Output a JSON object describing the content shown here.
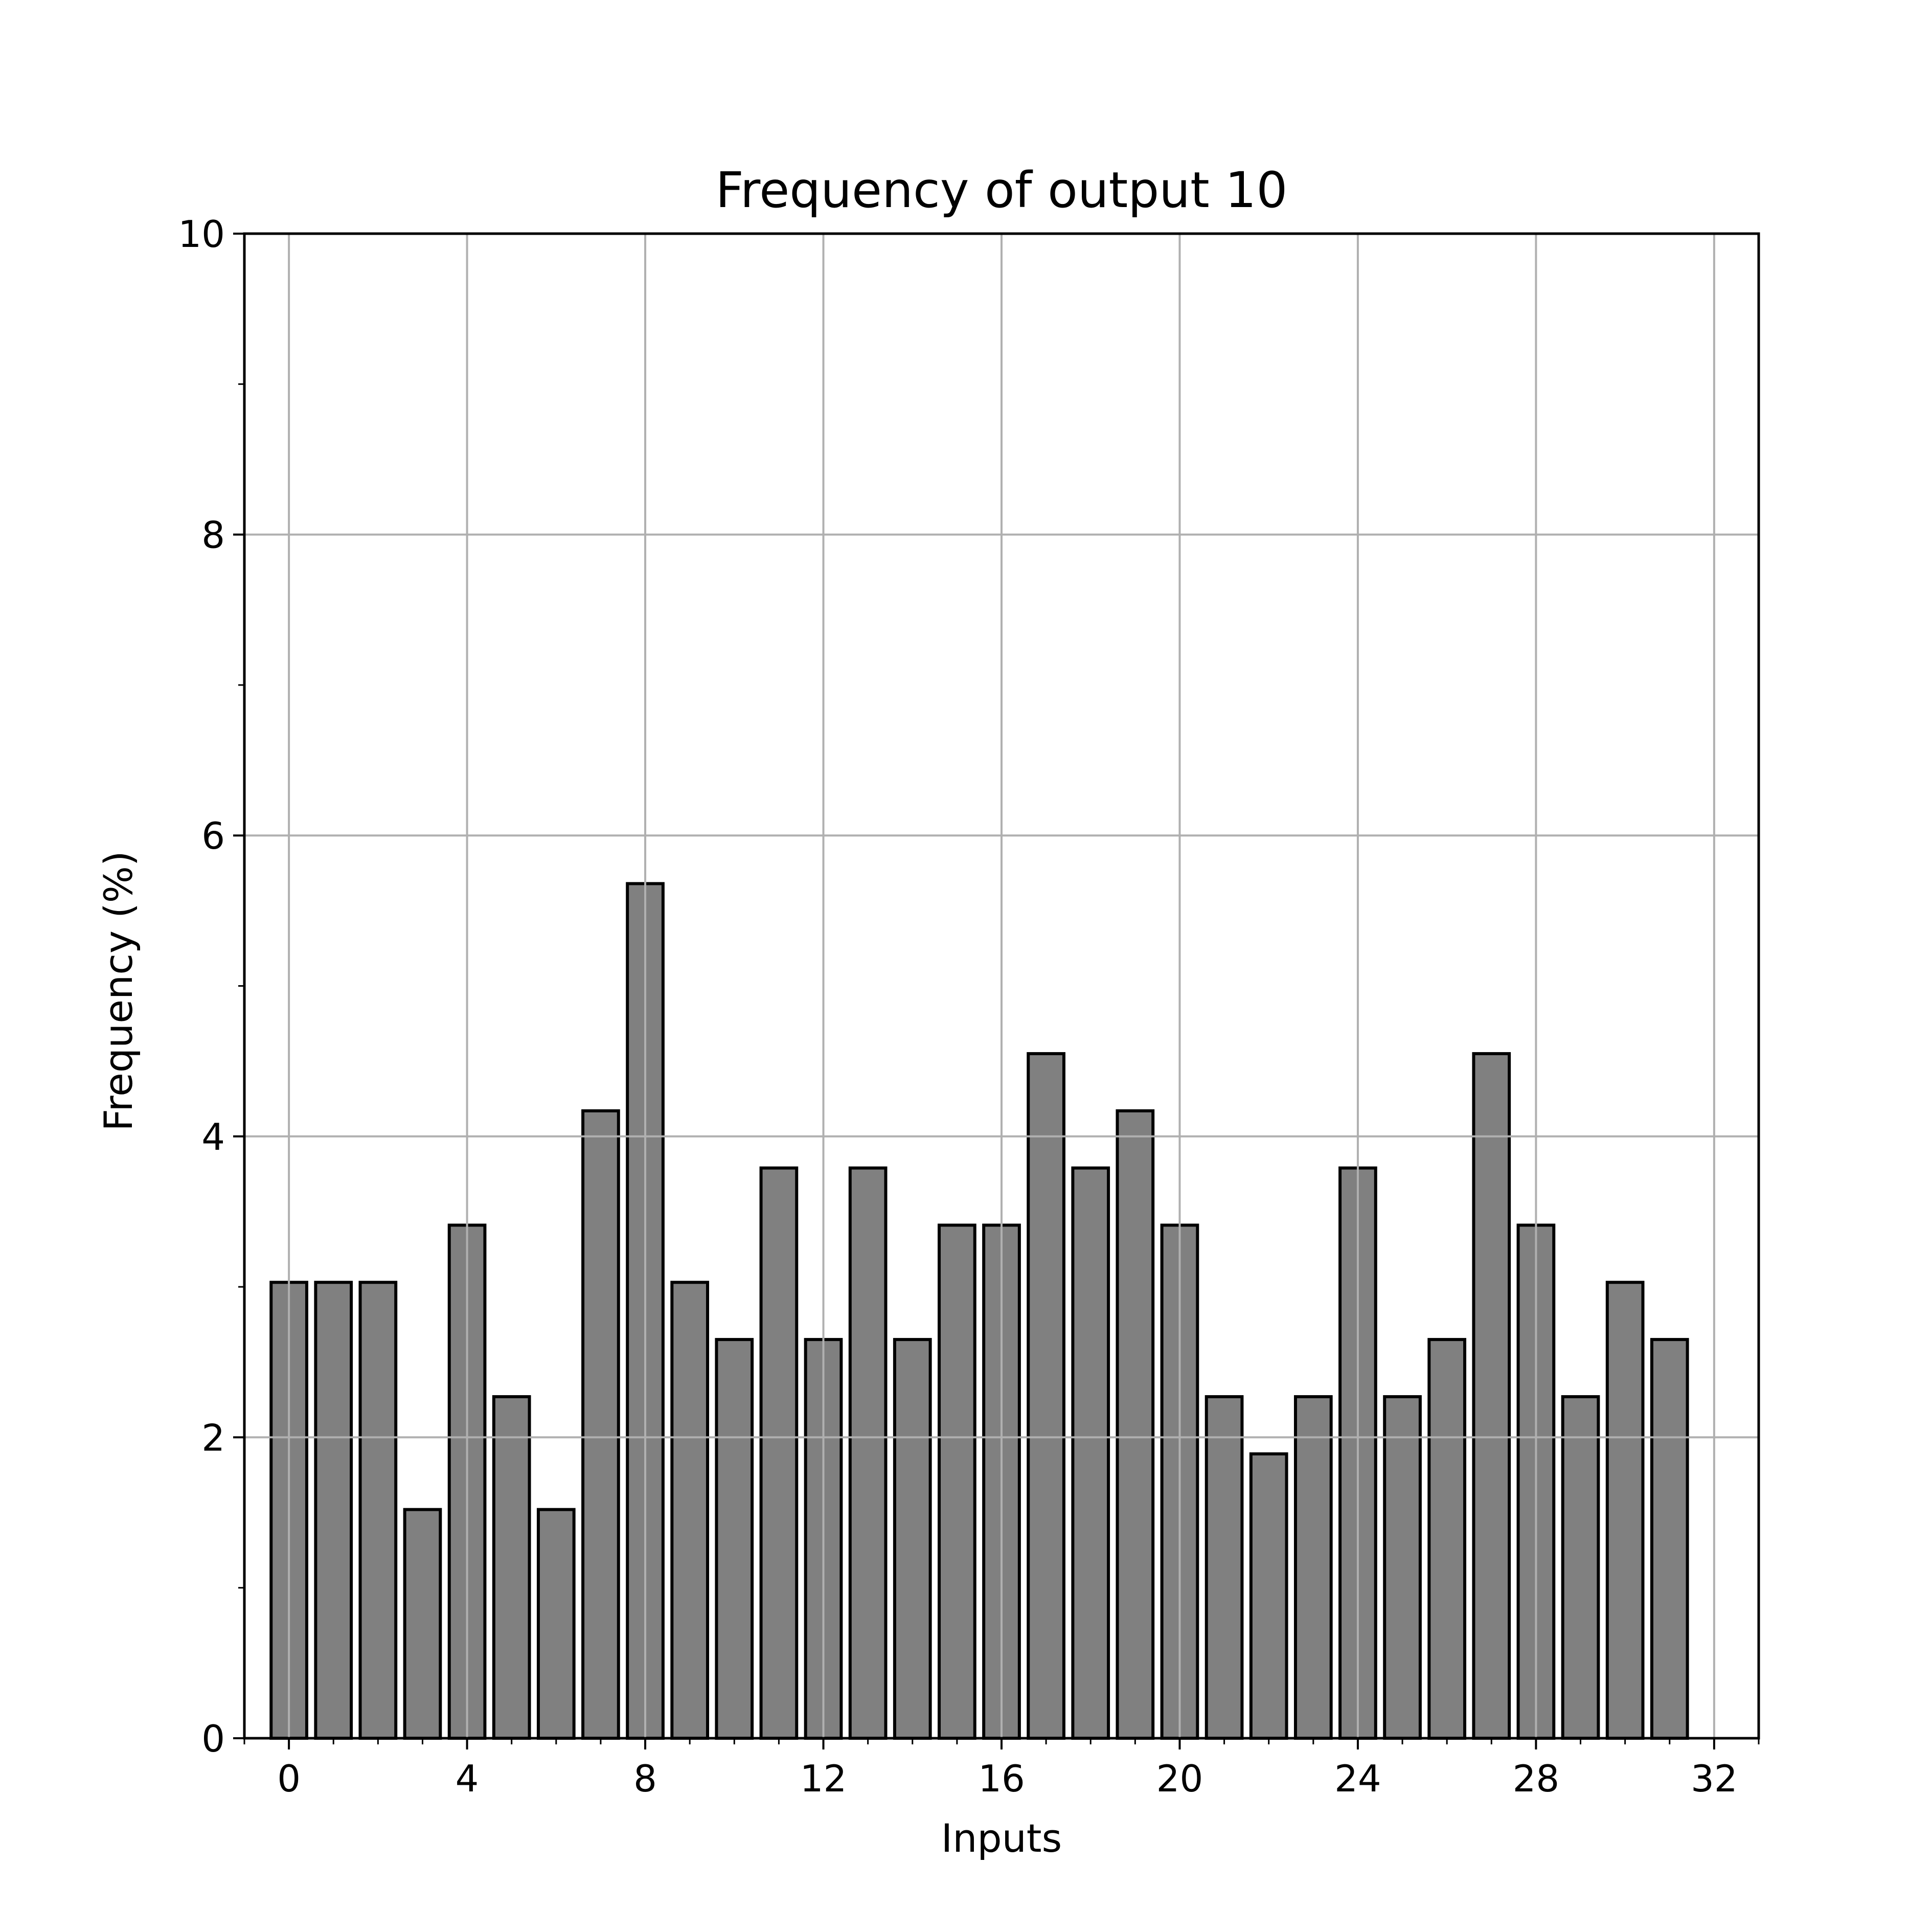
{
  "chart_data": {
    "type": "bar",
    "title": "Frequency of output 10",
    "xlabel": "Inputs",
    "ylabel": "Frequency (%)",
    "xlim": [
      -1,
      33
    ],
    "ylim": [
      0,
      10
    ],
    "x_ticks": [
      0,
      4,
      8,
      12,
      16,
      20,
      24,
      28,
      32
    ],
    "y_ticks": [
      0,
      2,
      4,
      6,
      8,
      10
    ],
    "x_minor_tick_step": 1,
    "y_minor_tick_step": 1,
    "grid": true,
    "categories": [
      0,
      1,
      2,
      3,
      4,
      5,
      6,
      7,
      8,
      9,
      10,
      11,
      12,
      13,
      14,
      15,
      16,
      17,
      18,
      19,
      20,
      21,
      22,
      23,
      24,
      25,
      26,
      27,
      28,
      29,
      30,
      31
    ],
    "values": [
      3.03,
      3.03,
      3.03,
      1.52,
      3.41,
      2.27,
      1.52,
      4.17,
      5.68,
      3.03,
      2.65,
      3.79,
      2.65,
      3.79,
      2.65,
      3.41,
      3.41,
      4.55,
      3.79,
      4.17,
      3.41,
      2.27,
      1.89,
      2.27,
      3.79,
      2.27,
      2.65,
      4.55,
      3.41,
      2.27,
      3.03,
      2.65
    ],
    "bar_color": "#808080",
    "bar_edge_color": "#000000",
    "grid_color": "#b0b0b0"
  }
}
